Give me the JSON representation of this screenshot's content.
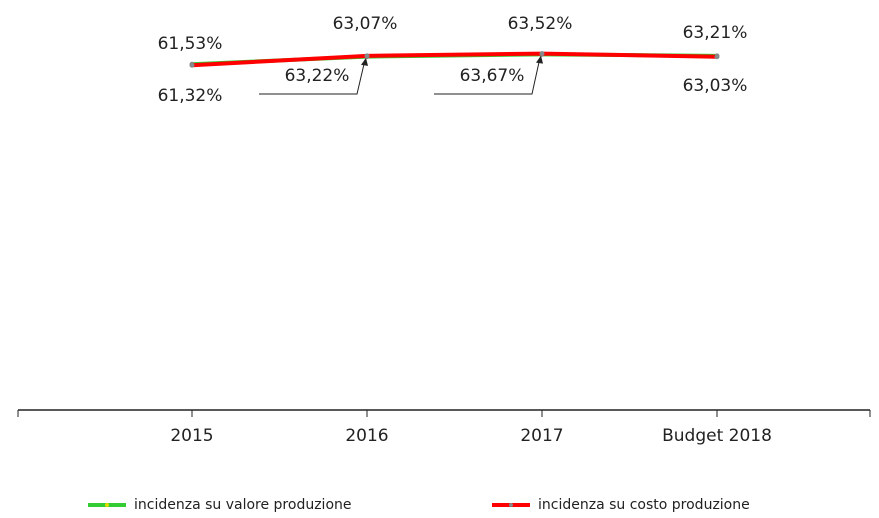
{
  "chart_data": {
    "type": "line",
    "categories": [
      "2015",
      "2016",
      "2017",
      "Budget 2018"
    ],
    "series": [
      {
        "name": "incidenza su valore produzione",
        "color": "#33cc33",
        "values": [
          61.53,
          63.07,
          63.52,
          63.21
        ],
        "value_labels": [
          "61,53%",
          "63,07%",
          "63,52%",
          "63,21%"
        ]
      },
      {
        "name": "incidenza su costo produzione",
        "color": "#ff0000",
        "values": [
          61.32,
          63.22,
          63.67,
          63.03
        ],
        "value_labels": [
          "61,32%",
          "63,22%",
          "63,67%",
          "63,03%"
        ]
      }
    ],
    "ylim": [
      -8,
      66
    ]
  }
}
